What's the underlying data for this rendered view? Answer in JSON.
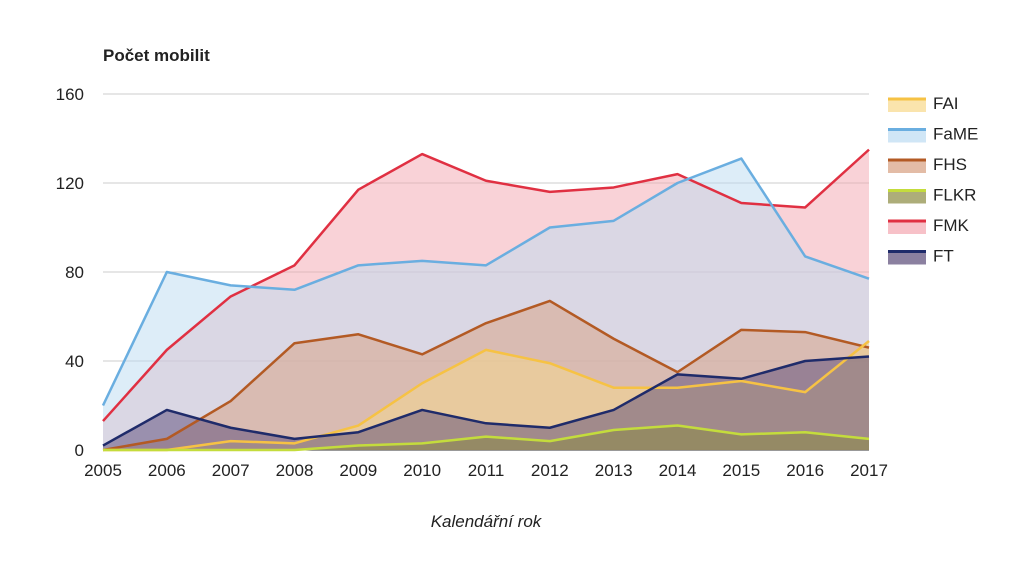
{
  "chart_data": {
    "type": "area",
    "title": "Počet mobilit",
    "xlabel": "Kalendářní rok",
    "ylabel": "",
    "x": [
      "2005",
      "2006",
      "2007",
      "2008",
      "2009",
      "2010",
      "2011",
      "2012",
      "2013",
      "2014",
      "2015",
      "2016",
      "2017"
    ],
    "ylim": [
      0,
      160
    ],
    "yticks": [
      "0",
      "40",
      "80",
      "120",
      "160"
    ],
    "grid": true,
    "legend_position": "right",
    "series": [
      {
        "name": "FMK",
        "color": "#e03042",
        "fill": "#f4a6b0",
        "values": [
          13,
          45,
          69,
          83,
          117,
          133,
          121,
          116,
          118,
          124,
          111,
          109,
          135
        ]
      },
      {
        "name": "FaME",
        "color": "#6aaee0",
        "fill": "#bcdcf2",
        "values": [
          20,
          80,
          74,
          72,
          83,
          85,
          83,
          100,
          103,
          120,
          131,
          87,
          77
        ]
      },
      {
        "name": "FHS",
        "color": "#b35a24",
        "fill": "#d7a080",
        "values": [
          0,
          5,
          22,
          48,
          52,
          43,
          57,
          67,
          50,
          35,
          54,
          53,
          46
        ]
      },
      {
        "name": "FAI",
        "color": "#f6c244",
        "fill": "#f8d98a",
        "values": [
          0,
          0,
          4,
          3,
          11,
          30,
          45,
          39,
          28,
          28,
          31,
          26,
          49
        ]
      },
      {
        "name": "FT",
        "color": "#1f2b6a",
        "fill": "#5a4a78",
        "values": [
          2,
          18,
          10,
          5,
          8,
          18,
          12,
          10,
          18,
          34,
          32,
          40,
          42
        ]
      },
      {
        "name": "FLKR",
        "color": "#c4dc3c",
        "fill": "#8a8a40",
        "values": [
          0,
          0,
          0,
          0,
          2,
          3,
          6,
          4,
          9,
          11,
          7,
          8,
          5
        ]
      }
    ],
    "legend_order": [
      "FAI",
      "FaME",
      "FHS",
      "FLKR",
      "FMK",
      "FT"
    ]
  }
}
